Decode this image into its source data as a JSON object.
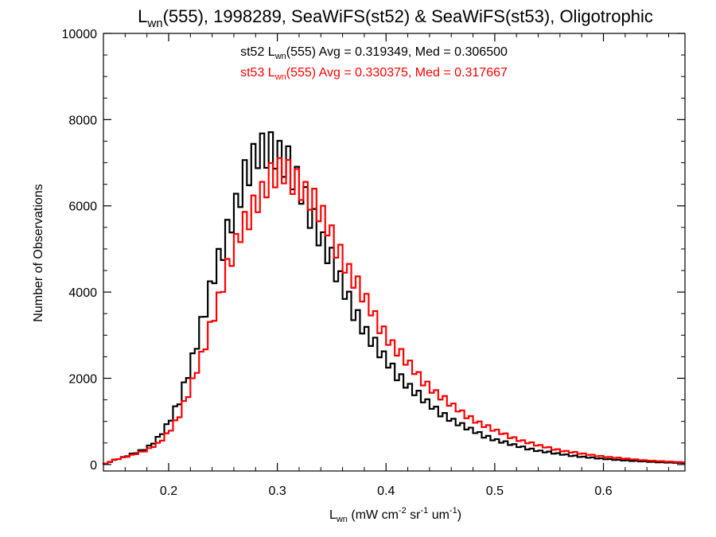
{
  "chart_data": {
    "type": "line",
    "title": {
      "pre": "L",
      "sub": "wn",
      "post": "(555), 1998289, SeaWiFS(st52) & SeaWiFS(st53), Oligotrophic"
    },
    "xlabel": {
      "pre": "L",
      "sub": "wn",
      "mid1": " (mW cm",
      "sup1": "-2",
      "mid2": " sr",
      "sup2": "-1",
      "mid3": " um",
      "sup3": "-1",
      "post": ")"
    },
    "ylabel": "Number of Observations",
    "xlim": [
      0.14,
      0.675
    ],
    "ylim": [
      -150,
      10000
    ],
    "xticks": [
      0.2,
      0.3,
      0.4,
      0.5,
      0.6
    ],
    "xtick_labels": [
      "0.2",
      "0.3",
      "0.4",
      "0.5",
      "0.6"
    ],
    "yticks": [
      0,
      2000,
      4000,
      6000,
      8000,
      10000
    ],
    "ytick_labels": [
      "0",
      "2000",
      "4000",
      "6000",
      "8000",
      "10000"
    ],
    "grid": false,
    "bin_width": 0.004,
    "annotations": [
      {
        "pre": "st52 L",
        "sub": "wn",
        "post": "(555) Avg = 0.319349, Med = 0.306500",
        "color": "#000000"
      },
      {
        "pre": "st53 L",
        "sub": "wn",
        "post": "(555) Avg = 0.330375, Med = 0.317667",
        "color": "#ff0000"
      }
    ],
    "series": [
      {
        "color": "#000000",
        "points": [
          [
            0.14,
            0
          ],
          [
            0.15,
            100
          ],
          [
            0.16,
            180
          ],
          [
            0.17,
            280
          ],
          [
            0.18,
            380
          ],
          [
            0.19,
            600
          ],
          [
            0.2,
            950
          ],
          [
            0.21,
            1500
          ],
          [
            0.22,
            2300
          ],
          [
            0.23,
            3200
          ],
          [
            0.24,
            4200
          ],
          [
            0.25,
            5100
          ],
          [
            0.26,
            5900
          ],
          [
            0.27,
            6600
          ],
          [
            0.28,
            7100
          ],
          [
            0.29,
            7400
          ],
          [
            0.3,
            7300
          ],
          [
            0.31,
            6900
          ],
          [
            0.32,
            6400
          ],
          [
            0.33,
            5900
          ],
          [
            0.34,
            5300
          ],
          [
            0.35,
            4700
          ],
          [
            0.36,
            4100
          ],
          [
            0.37,
            3600
          ],
          [
            0.38,
            3150
          ],
          [
            0.39,
            2750
          ],
          [
            0.4,
            2400
          ],
          [
            0.41,
            2100
          ],
          [
            0.42,
            1850
          ],
          [
            0.43,
            1600
          ],
          [
            0.44,
            1380
          ],
          [
            0.45,
            1200
          ],
          [
            0.46,
            1050
          ],
          [
            0.47,
            900
          ],
          [
            0.48,
            780
          ],
          [
            0.49,
            670
          ],
          [
            0.5,
            580
          ],
          [
            0.52,
            430
          ],
          [
            0.54,
            320
          ],
          [
            0.56,
            240
          ],
          [
            0.58,
            180
          ],
          [
            0.6,
            130
          ],
          [
            0.62,
            95
          ],
          [
            0.64,
            65
          ],
          [
            0.66,
            45
          ],
          [
            0.675,
            35
          ]
        ]
      },
      {
        "color": "#ff0000",
        "points": [
          [
            0.14,
            0
          ],
          [
            0.15,
            110
          ],
          [
            0.16,
            170
          ],
          [
            0.17,
            250
          ],
          [
            0.18,
            330
          ],
          [
            0.19,
            480
          ],
          [
            0.2,
            750
          ],
          [
            0.21,
            1150
          ],
          [
            0.22,
            1750
          ],
          [
            0.23,
            2500
          ],
          [
            0.24,
            3350
          ],
          [
            0.25,
            4200
          ],
          [
            0.26,
            4950
          ],
          [
            0.27,
            5600
          ],
          [
            0.28,
            6100
          ],
          [
            0.29,
            6500
          ],
          [
            0.3,
            6750
          ],
          [
            0.31,
            6750
          ],
          [
            0.32,
            6550
          ],
          [
            0.33,
            6200
          ],
          [
            0.34,
            5800
          ],
          [
            0.35,
            5300
          ],
          [
            0.36,
            4800
          ],
          [
            0.37,
            4300
          ],
          [
            0.38,
            3850
          ],
          [
            0.39,
            3400
          ],
          [
            0.4,
            3000
          ],
          [
            0.41,
            2650
          ],
          [
            0.42,
            2350
          ],
          [
            0.43,
            2050
          ],
          [
            0.44,
            1800
          ],
          [
            0.45,
            1580
          ],
          [
            0.46,
            1380
          ],
          [
            0.47,
            1200
          ],
          [
            0.48,
            1050
          ],
          [
            0.49,
            910
          ],
          [
            0.5,
            790
          ],
          [
            0.52,
            590
          ],
          [
            0.54,
            440
          ],
          [
            0.56,
            330
          ],
          [
            0.58,
            250
          ],
          [
            0.6,
            185
          ],
          [
            0.62,
            135
          ],
          [
            0.64,
            95
          ],
          [
            0.66,
            65
          ],
          [
            0.675,
            50
          ]
        ]
      }
    ]
  }
}
